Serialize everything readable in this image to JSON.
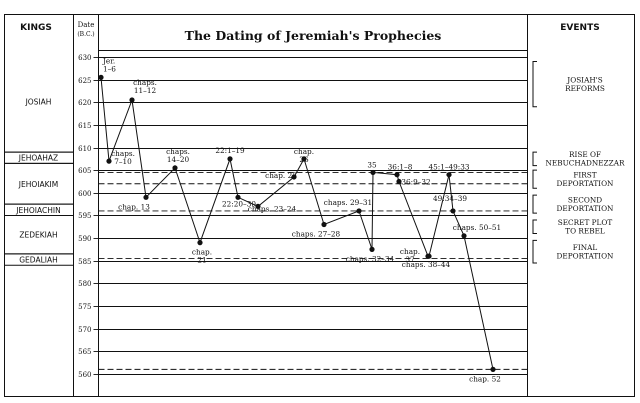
{
  "chart_data": {
    "type": "line",
    "title": "The Dating of Jeremiah's Prophecies",
    "left_header": "KINGS",
    "date_header_line1": "Date",
    "date_header_line2": "(B.C.)",
    "right_header": "EVENTS",
    "ylim": [
      557,
      632
    ],
    "y_reversed": true,
    "grid": true,
    "y_ticks": [
      630,
      625,
      620,
      615,
      610,
      605,
      600,
      595,
      590,
      585,
      580,
      575,
      570,
      565,
      560
    ],
    "dashed_years": [
      604.5,
      602,
      596,
      585.5,
      561
    ],
    "kings": [
      {
        "name": "JOSIAH",
        "from": 640,
        "to": 609
      },
      {
        "name": "JEHOAHAZ",
        "from": 609,
        "to": 606.5
      },
      {
        "name": "JEHOIAKIM",
        "from": 606.5,
        "to": 597.5
      },
      {
        "name": "JEHOIACHIN",
        "from": 597.5,
        "to": 595
      },
      {
        "name": "ZEDEKIAH",
        "from": 595,
        "to": 586.5
      },
      {
        "name": "GEDALIAH",
        "from": 586.5,
        "to": 584
      }
    ],
    "events": [
      {
        "lines": [
          "JOSIAH'S",
          "REFORMS"
        ],
        "from": 629,
        "to": 619
      },
      {
        "lines": [
          "RISE OF",
          "NEBUCHADNEZZAR"
        ],
        "from": 609,
        "to": 606
      },
      {
        "lines": [
          "FIRST",
          "DEPORTATION"
        ],
        "from": 605,
        "to": 601
      },
      {
        "lines": [
          "SECOND",
          "DEPORTATION"
        ],
        "from": 599.5,
        "to": 595.5
      },
      {
        "lines": [
          "SECRET PLOT",
          "TO REBEL"
        ],
        "from": 594,
        "to": 591
      },
      {
        "lines": [
          "FINAL",
          "DEPORTATION"
        ],
        "from": 589.5,
        "to": 584.5
      }
    ],
    "points": [
      {
        "label": "Jer. 1–6",
        "year": 625.5
      },
      {
        "label": "chaps. 7–10",
        "year": 607
      },
      {
        "label": "chaps. 11–12",
        "year": 620.5
      },
      {
        "label": "chap. 13",
        "year": 599
      },
      {
        "label": "chaps. 14–20",
        "year": 605.5
      },
      {
        "label": "chap. 21",
        "year": 589
      },
      {
        "label": "22:1–19",
        "year": 607.5
      },
      {
        "label": "22:20–30",
        "year": 599
      },
      {
        "label": "chaps. 23–24",
        "year": 597
      },
      {
        "label": "chap. 25",
        "year": 603.5
      },
      {
        "label": "chap. 26",
        "year": 607.5
      },
      {
        "label": "chaps. 27–28",
        "year": 593
      },
      {
        "label": "chaps. 29–31",
        "year": 596
      },
      {
        "label": "chaps. 32–34",
        "year": 587.5
      },
      {
        "label": "35",
        "year": 604.5
      },
      {
        "label": "36:1–8",
        "year": 604
      },
      {
        "label": "36:9–32",
        "year": 602.5
      },
      {
        "label": "chap. 37",
        "year": 586
      },
      {
        "label": "chaps. 38–44",
        "year": 586
      },
      {
        "label": "45:1–49:33",
        "year": 604
      },
      {
        "label": "49:34–39",
        "year": 596
      },
      {
        "label": "chaps. 50–51",
        "year": 590.5
      },
      {
        "label": "chap. 52",
        "year": 561
      }
    ]
  }
}
